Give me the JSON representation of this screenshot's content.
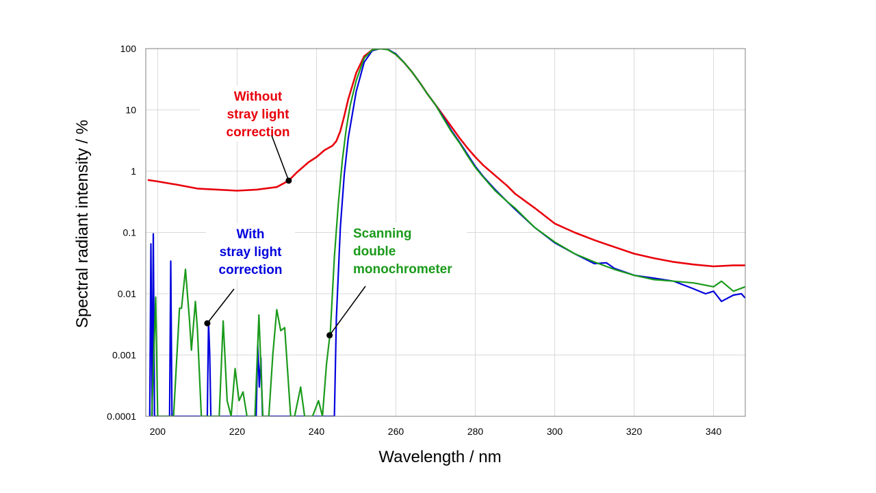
{
  "chart_data": {
    "type": "line",
    "title": "",
    "xlabel": "Wavelength / nm",
    "ylabel": "Spectral radiant intensity / %",
    "xlim": [
      197,
      348
    ],
    "ylim": [
      0.0001,
      100
    ],
    "yscale": "log",
    "grid": true,
    "legend": "none",
    "x_ticks": [
      "200",
      "220",
      "240",
      "260",
      "280",
      "300",
      "320",
      "340"
    ],
    "y_ticks": [
      "100",
      "10",
      "1",
      "0.1",
      "0.01",
      "0.001",
      "0.0001"
    ],
    "series": [
      {
        "color": "#e8000b",
        "x": [
          197.5,
          200,
          205,
          210,
          215,
          220,
          225,
          230,
          233,
          235,
          238,
          240,
          242,
          244,
          245,
          246,
          247,
          248,
          250,
          252,
          254,
          256,
          258,
          260,
          262,
          264,
          266,
          268,
          270,
          272,
          274,
          276,
          278,
          280,
          282,
          285,
          288,
          290,
          295,
          300,
          305,
          310,
          315,
          320,
          325,
          330,
          335,
          340,
          345,
          348
        ],
        "y": [
          0.72,
          0.68,
          0.6,
          0.52,
          0.5,
          0.48,
          0.5,
          0.55,
          0.7,
          0.95,
          1.4,
          1.7,
          2.2,
          2.6,
          3.1,
          4.5,
          8,
          15,
          40,
          75,
          95,
          100,
          97,
          80,
          60,
          42,
          28,
          18,
          12,
          8,
          5.3,
          3.5,
          2.4,
          1.7,
          1.25,
          0.85,
          0.58,
          0.43,
          0.25,
          0.14,
          0.1,
          0.075,
          0.058,
          0.045,
          0.038,
          0.033,
          0.03,
          0.028,
          0.029,
          0.029
        ]
      },
      {
        "color": "#0000dd",
        "x": [
          198,
          198.3,
          198.6,
          198.9,
          199.2,
          203,
          203.3,
          203.6,
          212.5,
          212.8,
          213.1,
          213.4,
          224.8,
          225.2,
          225.6,
          226,
          226.4,
          244.5,
          245,
          246,
          247,
          248,
          250,
          252,
          254,
          256,
          258,
          260,
          262,
          264,
          266,
          268,
          270,
          272,
          274,
          276,
          278,
          280,
          282,
          285,
          288,
          290,
          295,
          300,
          305,
          310,
          313,
          315,
          320,
          325,
          330,
          335,
          338,
          340,
          342,
          345,
          347,
          348
        ],
        "y": [
          0.0001,
          0.065,
          0.0001,
          0.095,
          0.0001,
          0.0001,
          0.034,
          0.0001,
          0.0001,
          0.0035,
          0.0011,
          0.0001,
          0.0001,
          0.0015,
          0.0003,
          0.0009,
          0.0001,
          0.0001,
          0.004,
          0.12,
          0.9,
          3.5,
          20,
          60,
          92,
          100,
          97,
          82,
          60,
          42,
          28,
          18,
          12,
          7.5,
          4.6,
          3,
          1.9,
          1.2,
          0.82,
          0.5,
          0.32,
          0.24,
          0.12,
          0.068,
          0.045,
          0.031,
          0.032,
          0.026,
          0.02,
          0.018,
          0.016,
          0.012,
          0.01,
          0.011,
          0.0075,
          0.0095,
          0.01,
          0.0085
        ]
      },
      {
        "color": "#1a9a1a",
        "x": [
          198.5,
          199.5,
          200,
          200.5,
          203,
          204,
          205.5,
          206,
          207,
          208,
          208.5,
          209.5,
          210,
          211,
          213,
          214.5,
          215.5,
          216.5,
          217.5,
          218.5,
          219.5,
          220.5,
          221.5,
          222.5,
          223.5,
          224.5,
          225.5,
          226.5,
          228,
          229,
          230,
          231,
          232,
          233.5,
          234.5,
          236,
          237,
          238,
          239,
          240.5,
          241.5,
          242.5,
          243.5,
          244.5,
          245.5,
          246.5,
          247.5,
          248.5,
          250,
          252,
          254,
          256,
          258,
          260,
          262,
          264,
          266,
          268,
          270,
          272,
          274,
          276,
          278,
          280,
          282,
          285,
          288,
          290,
          295,
          300,
          305,
          310,
          315,
          320,
          325,
          330,
          335,
          340,
          342,
          345,
          348
        ],
        "y": [
          0.0001,
          0.0088,
          0.0001,
          0.0001,
          0.0001,
          0.0001,
          0.0058,
          0.0058,
          0.025,
          0.0038,
          0.0012,
          0.0075,
          0.0027,
          0.0001,
          0.0001,
          0.0001,
          0.0001,
          0.0036,
          0.00018,
          0.0001,
          0.0006,
          0.00018,
          0.00025,
          0.0001,
          0.0001,
          0.0001,
          0.0045,
          0.0001,
          0.0001,
          0.001,
          0.0055,
          0.0025,
          0.0028,
          0.0001,
          0.0001,
          0.0003,
          0.0001,
          0.0001,
          0.0001,
          0.00018,
          0.0001,
          0.0007,
          0.0025,
          0.04,
          0.3,
          1.5,
          5,
          12,
          30,
          70,
          95,
          100,
          96,
          80,
          60,
          42,
          28,
          18,
          12,
          7.2,
          4.4,
          2.9,
          1.8,
          1.15,
          0.8,
          0.48,
          0.32,
          0.25,
          0.12,
          0.07,
          0.045,
          0.033,
          0.025,
          0.02,
          0.017,
          0.016,
          0.015,
          0.013,
          0.016,
          0.011,
          0.013
        ]
      }
    ],
    "annotations": [
      {
        "lines": [
          "Without",
          "stray light",
          "correction"
        ],
        "color": "#e8000b",
        "point": [
          233,
          0.7
        ]
      },
      {
        "lines": [
          "With",
          "stray light",
          "correction"
        ],
        "color": "#0000dd",
        "point": [
          212.5,
          0.0033
        ]
      },
      {
        "lines": [
          "Scanning",
          "double",
          "monochrometer"
        ],
        "color": "#1a9a1a",
        "point": [
          243.3,
          0.0021
        ]
      }
    ]
  }
}
